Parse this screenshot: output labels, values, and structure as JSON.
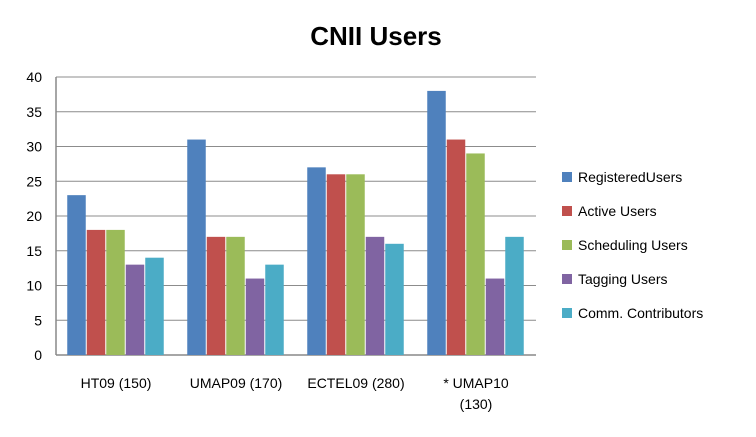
{
  "chart_data": {
    "type": "bar",
    "title": "CNII Users",
    "xlabel": "",
    "ylabel": "",
    "ylim": [
      0,
      40
    ],
    "yticks": [
      0,
      5,
      10,
      15,
      20,
      25,
      30,
      35,
      40
    ],
    "grid": true,
    "legend_position": "right",
    "categories": [
      "HT09 (150)",
      "UMAP09 (170)",
      "ECTEL09 (280)",
      "* UMAP10 (130)"
    ],
    "category_lines": [
      [
        "HT09 (150)"
      ],
      [
        "UMAP09 (170)"
      ],
      [
        "ECTEL09 (280)"
      ],
      [
        "* UMAP10",
        "(130)"
      ]
    ],
    "series": [
      {
        "name": "RegisteredUsers",
        "color": "#4f81bd",
        "values": [
          23,
          31,
          27,
          38
        ]
      },
      {
        "name": "Active Users",
        "color": "#c0504d",
        "values": [
          18,
          17,
          26,
          31
        ]
      },
      {
        "name": "Scheduling Users",
        "color": "#9bbb59",
        "values": [
          18,
          17,
          26,
          29
        ]
      },
      {
        "name": "Tagging Users",
        "color": "#8064a2",
        "values": [
          13,
          11,
          17,
          11
        ]
      },
      {
        "name": "Comm. Contributors",
        "color": "#4bacc6",
        "values": [
          14,
          13,
          16,
          17
        ]
      }
    ]
  }
}
